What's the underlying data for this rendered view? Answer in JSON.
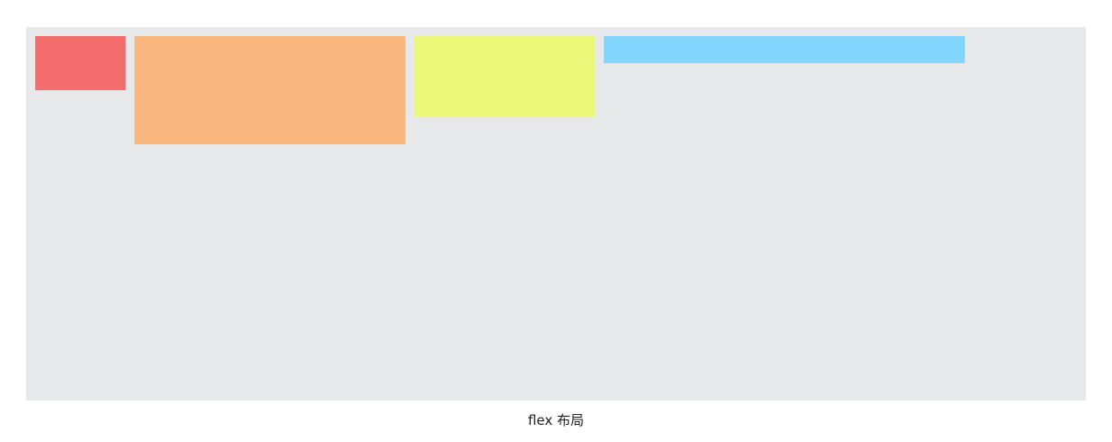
{
  "figure": {
    "caption": "flex 布局",
    "container_color": "#e7e8ea",
    "items": [
      {
        "color": "#f26d6c"
      },
      {
        "color": "#f9b67d"
      },
      {
        "color": "#eaf778"
      },
      {
        "color": "#82d5fd"
      }
    ]
  }
}
